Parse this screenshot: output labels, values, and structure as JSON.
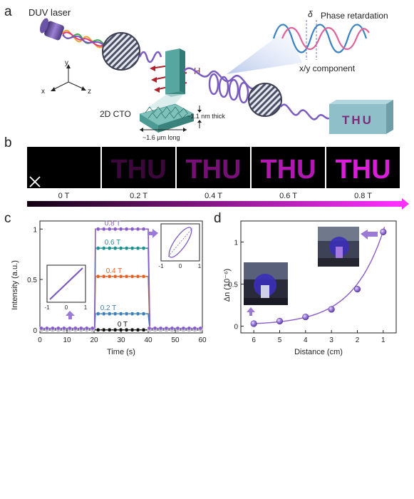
{
  "panel_a": {
    "letter": "a",
    "laser_label": "DUV laser",
    "field_label": "H",
    "material_label": "2D CTO",
    "thickness_label": "~1.1 nm thick",
    "length_label": "~1.6 μm long",
    "delta_symbol": "δ",
    "retardation_label": "Phase retardation",
    "component_label": "x/y component",
    "screen_text": "THU",
    "axes": {
      "x": "x",
      "y": "y",
      "z": "z"
    }
  },
  "panel_b": {
    "letter": "b",
    "word": "THU",
    "frames": [
      {
        "label": "0 T",
        "opacity": 0.0
      },
      {
        "label": "0.2 T",
        "opacity": 0.28
      },
      {
        "label": "0.4 T",
        "opacity": 0.55
      },
      {
        "label": "0.6 T",
        "opacity": 0.82
      },
      {
        "label": "0.8 T",
        "opacity": 1.0
      }
    ],
    "colors": {
      "text": "#d81ed8",
      "frame_bg": "#000000",
      "gradient_start": "#160016",
      "gradient_end": "#ff30ff"
    }
  },
  "panel_c": {
    "letter": "c",
    "chart_data": {
      "type": "line",
      "xlabel": "Time (s)",
      "ylabel": "Intensity (a.u.)",
      "xlim": [
        0,
        60
      ],
      "ylim": [
        -0.03,
        1.08
      ],
      "xticks": [
        0,
        10,
        20,
        30,
        40,
        50,
        60
      ],
      "yticks": [
        0.0,
        0.5,
        1.0
      ],
      "on_interval": [
        20.5,
        40
      ],
      "series": [
        {
          "name": "0 T",
          "on_value": 0.0,
          "off_value": 0.0,
          "color": "#111111"
        },
        {
          "name": "0.2 T",
          "on_value": 0.16,
          "off_value": 0.0,
          "color": "#3f7fb8"
        },
        {
          "name": "0.4 T",
          "on_value": 0.53,
          "off_value": 0.0,
          "color": "#e0632b"
        },
        {
          "name": "0.6 T",
          "on_value": 0.81,
          "off_value": 0.0,
          "color": "#1f8f8f"
        },
        {
          "name": "0.8 T",
          "on_value": 1.0,
          "off_value": 0.0,
          "color": "#8a5cc7"
        }
      ],
      "insets": [
        {
          "tick_labels": [
            "-1",
            "0",
            "1"
          ],
          "shape": "line"
        },
        {
          "tick_labels": [
            "-1",
            "0",
            "1"
          ],
          "shape": "ellipse"
        }
      ]
    }
  },
  "panel_d": {
    "letter": "d",
    "chart_data": {
      "type": "scatter",
      "xlabel": "Distance (cm)",
      "ylabel": "Δn (10⁻⁶)",
      "xlim": [
        6.5,
        0.5
      ],
      "ylim": [
        -0.08,
        1.25
      ],
      "xticks": [
        6,
        5,
        4,
        3,
        2,
        1
      ],
      "yticks": [
        0.0,
        0.5,
        1.0
      ],
      "x": [
        6,
        5,
        4,
        3,
        2,
        1
      ],
      "y": [
        0.03,
        0.06,
        0.11,
        0.2,
        0.44,
        1.12
      ],
      "color": "#8a5cc7"
    }
  }
}
